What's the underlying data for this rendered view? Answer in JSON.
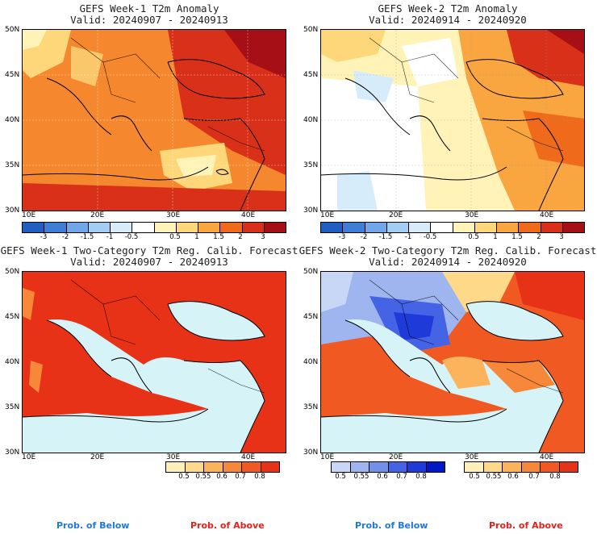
{
  "panels": [
    {
      "title": "GEFS Week-1 T2m Anomaly",
      "valid": "Valid: 20240907 - 20240913"
    },
    {
      "title": "GEFS Week-2 T2m Anomaly",
      "valid": "Valid: 20240914 - 20240920"
    },
    {
      "title": "GEFS Week-1 Two-Category T2m Reg. Calib. Forecast",
      "valid": "Valid: 20240907 - 20240913"
    },
    {
      "title": "GEFS Week-2 Two-Category T2m Reg. Calib. Forecast",
      "valid": "Valid: 20240914 - 20240920"
    }
  ],
  "lat_labels": [
    "50N",
    "45N",
    "40N",
    "35N",
    "30N"
  ],
  "lon_labels": [
    "10E",
    "20E",
    "30E",
    "40E"
  ],
  "anomaly_colorbar": {
    "labels": [
      "-3",
      "-2",
      "-1.5",
      "-1",
      "-0.5",
      "0.5",
      "1",
      "1.5",
      "2",
      "3"
    ],
    "colors": [
      "#1f5fbf",
      "#3d7fd6",
      "#6fa7e8",
      "#a3cdf3",
      "#d6ecfb",
      "#ffffff",
      "#fff3b8",
      "#fdd77a",
      "#f9a640",
      "#f06a1c",
      "#d9301a",
      "#a50f15"
    ]
  },
  "prob_colorbar": {
    "labels": [
      "0.5",
      "0.55",
      "0.6",
      "0.7",
      "0.8"
    ],
    "below_colors": [
      "#c9d7f7",
      "#9fb5f0",
      "#7090ea",
      "#4563e5",
      "#1e3ad8",
      "#0018c8"
    ],
    "above_colors": [
      "#fff0b8",
      "#fed98a",
      "#fbb45c",
      "#f7883a",
      "#f05a22",
      "#e83218"
    ]
  },
  "legend": {
    "prob_below": "Prob. of Below",
    "prob_above": "Prob. of Above",
    "below_color": "#1e78e0",
    "above_color": "#e8201a"
  },
  "sea_color": "#d6f4f7"
}
